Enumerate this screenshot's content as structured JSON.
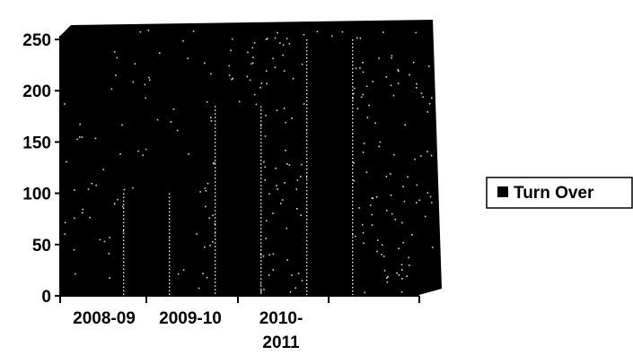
{
  "chart_data": {
    "type": "bar",
    "categories": [
      [
        "2008-09"
      ],
      [
        "2009-10"
      ],
      [
        "2010-",
        "2011"
      ]
    ],
    "series": [
      {
        "name": "Turn Over",
        "values": [
          100,
          185,
          250
        ]
      }
    ],
    "ylim": [
      0,
      250
    ],
    "yticks": [
      0,
      50,
      100,
      150,
      200,
      250
    ],
    "grid": false,
    "legend": "right",
    "colors": {
      "plot_background": "#000000",
      "bar_fill": "#000000",
      "noise_dots": "#ffffff",
      "axis": "#000000",
      "text": "#000000"
    }
  }
}
